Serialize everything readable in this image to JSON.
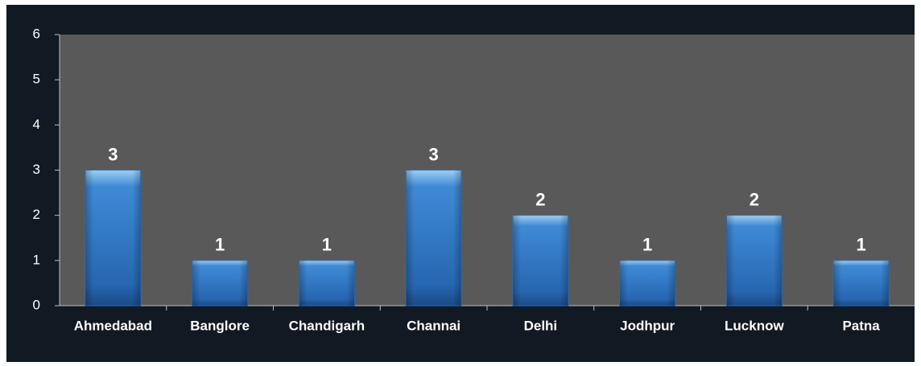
{
  "chart_data": {
    "type": "bar",
    "categories": [
      "Ahmedabad",
      "Banglore",
      "Chandigarh",
      "Channai",
      "Delhi",
      "Jodhpur",
      "Lucknow",
      "Patna"
    ],
    "values": [
      3,
      1,
      1,
      3,
      2,
      1,
      2,
      1
    ],
    "color": "#2f73c2",
    "ylim": [
      0,
      6
    ],
    "yticks": [
      0,
      1,
      2,
      3,
      4,
      5,
      6
    ],
    "grid": false
  }
}
